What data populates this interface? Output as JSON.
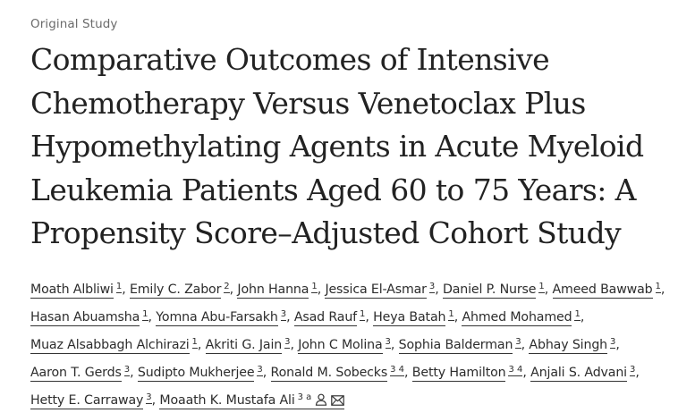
{
  "article": {
    "type": "Original Study",
    "title": "Comparative Outcomes of Intensive Chemotherapy Versus Venetoclax Plus Hypomethylating Agents in Acute Myeloid Leukemia Patients Aged 60 to 75 Years: A Propensity Score–Adjusted Cohort Study"
  },
  "authors": [
    {
      "name": "Moath Albliwi",
      "aff": "1"
    },
    {
      "name": "Emily C. Zabor",
      "aff": "2"
    },
    {
      "name": "John Hanna",
      "aff": "1"
    },
    {
      "name": "Jessica El-Asmar",
      "aff": "3"
    },
    {
      "name": "Daniel P. Nurse",
      "aff": "1"
    },
    {
      "name": "Ameed Bawwab",
      "aff": "1"
    },
    {
      "name": "Hasan Abuamsha",
      "aff": "1"
    },
    {
      "name": "Yomna Abu-Farsakh",
      "aff": "3"
    },
    {
      "name": "Asad Rauf",
      "aff": "1"
    },
    {
      "name": "Heya Batah",
      "aff": "1"
    },
    {
      "name": "Ahmed Mohamed",
      "aff": "1"
    },
    {
      "name": "Muaz Alsabbagh Alchirazi",
      "aff": "1"
    },
    {
      "name": "Akriti G. Jain",
      "aff": "3"
    },
    {
      "name": "John C Molina",
      "aff": "3"
    },
    {
      "name": "Sophia Balderman",
      "aff": "3"
    },
    {
      "name": "Abhay Singh",
      "aff": "3"
    },
    {
      "name": "Aaron T. Gerds",
      "aff": "3"
    },
    {
      "name": "Sudipto Mukherjee",
      "aff": "3"
    },
    {
      "name": "Ronald M. Sobecks",
      "aff": "3 4"
    },
    {
      "name": "Betty Hamilton",
      "aff": "3 4"
    },
    {
      "name": "Anjali S. Advani",
      "aff": "3"
    },
    {
      "name": "Hetty E. Carraway",
      "aff": "3"
    },
    {
      "name": "Moaath K. Mustafa Ali",
      "aff": "3 a"
    }
  ],
  "separator": ",",
  "icons": {
    "person": "person-icon",
    "email": "envelope-icon"
  }
}
